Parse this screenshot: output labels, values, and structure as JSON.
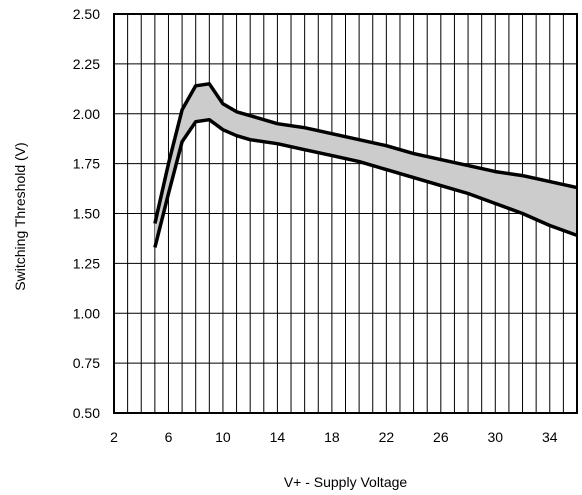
{
  "chart_data": {
    "type": "area",
    "title": "",
    "xlabel": "V+ - Supply Voltage",
    "ylabel": "Switching Threshold (V)",
    "xlim": [
      2,
      36
    ],
    "ylim": [
      0.5,
      2.5
    ],
    "xticks": [
      2,
      6,
      10,
      14,
      18,
      22,
      26,
      30,
      34
    ],
    "xtick_labels": [
      "2",
      "6",
      "10",
      "14",
      "18",
      "22",
      "26",
      "30",
      "34"
    ],
    "yticks": [
      0.5,
      0.75,
      1.0,
      1.25,
      1.5,
      1.75,
      2.0,
      2.25,
      2.5
    ],
    "ytick_labels": [
      "0.50",
      "0.75",
      "1.00",
      "1.25",
      "1.50",
      "1.75",
      "2.00",
      "2.25",
      "2.50"
    ],
    "x_minor_step": 1,
    "grid": true,
    "band_fill": "#cccccc",
    "series": [
      {
        "x": [
          5,
          6,
          7,
          8,
          9,
          10,
          11,
          12,
          14,
          16,
          18,
          20,
          22,
          24,
          26,
          28,
          30,
          32,
          34,
          36
        ],
        "y": [
          1.45,
          1.75,
          2.02,
          2.14,
          2.15,
          2.05,
          2.01,
          1.99,
          1.95,
          1.93,
          1.9,
          1.87,
          1.84,
          1.8,
          1.77,
          1.74,
          1.71,
          1.69,
          1.66,
          1.63
        ]
      },
      {
        "x": [
          5,
          6,
          7,
          8,
          9,
          10,
          11,
          12,
          14,
          16,
          18,
          20,
          22,
          24,
          26,
          28,
          30,
          32,
          34,
          36
        ],
        "y": [
          1.33,
          1.6,
          1.86,
          1.96,
          1.97,
          1.92,
          1.89,
          1.87,
          1.85,
          1.82,
          1.79,
          1.76,
          1.72,
          1.68,
          1.64,
          1.6,
          1.55,
          1.5,
          1.44,
          1.39
        ]
      }
    ]
  }
}
